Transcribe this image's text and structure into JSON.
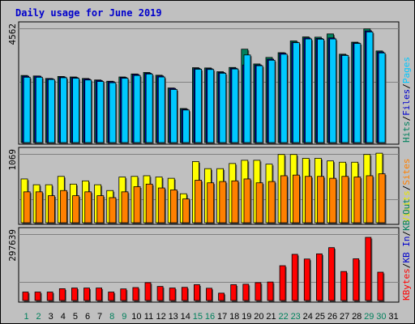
{
  "chart_data": {
    "type": "bar",
    "title": "Daily usage for June 2019",
    "days": [
      "1",
      "2",
      "3",
      "4",
      "5",
      "6",
      "7",
      "8",
      "9",
      "10",
      "11",
      "12",
      "13",
      "14",
      "15",
      "16",
      "17",
      "18",
      "19",
      "20",
      "21",
      "22",
      "23",
      "24",
      "25",
      "26",
      "27",
      "28",
      "29",
      "30",
      "31"
    ],
    "weekend_days": [
      1,
      2,
      8,
      9,
      15,
      16,
      22,
      23,
      29,
      30
    ],
    "colors": {
      "hits": "#00805c",
      "files": "#0000cc",
      "pages": "#00c8ff",
      "visits": "#ffff00",
      "sites": "#ff8000",
      "kbf": "#ff0000",
      "kbin": "#0000cc",
      "kbout": "#00805c",
      "day_weekday": "#000000",
      "day_weekend": "#00805c"
    },
    "panels": [
      {
        "id": "hits",
        "ymax_label": "4562",
        "ymax": 4562,
        "legend": [
          {
            "text": "Hits",
            "color": "#00805c"
          },
          {
            "text": "/",
            "color": "#000000"
          },
          {
            "text": "Files",
            "color": "#0000cc"
          },
          {
            "text": "/",
            "color": "#000000"
          },
          {
            "text": "Pages",
            "color": "#00c8ff"
          }
        ],
        "series": [
          {
            "name": "Hits",
            "color": "#00805c",
            "values": [
              2680,
              2660,
              2560,
              2640,
              2620,
              2560,
              2500,
              2450,
              2620,
              2740,
              2800,
              2690,
              2180,
              1360,
              2990,
              2980,
              2830,
              3000,
              3730,
              3140,
              3400,
              3590,
              4060,
              4220,
              4210,
              4340,
              3530,
              4010,
              4540,
              3660,
              0
            ]
          },
          {
            "name": "Files",
            "color": "#0000cc",
            "values": [
              2650,
              2650,
              2550,
              2620,
              2600,
              2540,
              2480,
              2430,
              2600,
              2720,
              2770,
              2660,
              2160,
              1330,
              2960,
              2950,
              2800,
              2970,
              3100,
              3100,
              3330,
              3570,
              4010,
              4180,
              4160,
              4180,
              3500,
              3980,
              4460,
              3620,
              0
            ]
          },
          {
            "name": "Pages",
            "color": "#00c8ff",
            "values": [
              2610,
              2610,
              2520,
              2590,
              2570,
              2500,
              2440,
              2390,
              2570,
              2680,
              2740,
              2620,
              2120,
              1300,
              2930,
              2920,
              2770,
              2940,
              3500,
              3070,
              3290,
              3530,
              3990,
              4140,
              4130,
              4140,
              3480,
              3960,
              4420,
              3580,
              0
            ]
          }
        ]
      },
      {
        "id": "visits",
        "ymax_label": "1069",
        "ymax": 1069,
        "legend": [
          {
            "text": "Visits",
            "color": "#e6e600"
          },
          {
            "text": "/",
            "color": "#000000"
          },
          {
            "text": "Sites",
            "color": "#ff8000"
          }
        ],
        "series": [
          {
            "name": "Visits",
            "color": "#ffff00",
            "values": [
              680,
              590,
              590,
              720,
              600,
              650,
              590,
              500,
              710,
              720,
              730,
              710,
              690,
              450,
              950,
              840,
              840,
              920,
              970,
              970,
              910,
              1060,
              1060,
              1000,
              1000,
              960,
              940,
              940,
              1060,
              1080,
              0
            ]
          },
          {
            "name": "Sites",
            "color": "#ff8000",
            "values": [
              480,
              480,
              420,
              500,
              420,
              480,
              420,
              390,
              480,
              560,
              600,
              540,
              510,
              370,
              660,
              620,
              640,
              650,
              680,
              620,
              640,
              730,
              740,
              720,
              720,
              690,
              720,
              710,
              730,
              760,
              0
            ]
          }
        ]
      },
      {
        "id": "kbytes",
        "ymax_label": "297639",
        "ymax": 297639,
        "legend": [
          {
            "text": "KBytes",
            "color": "#ff0000"
          },
          {
            "text": "/",
            "color": "#000000"
          },
          {
            "text": "KB In",
            "color": "#0000cc"
          },
          {
            "text": "/",
            "color": "#000000"
          },
          {
            "text": "KB Out",
            "color": "#00805c"
          }
        ],
        "series": [
          {
            "name": "KBytes",
            "color": "#ff0000",
            "values": [
              38000,
              38000,
              38000,
              53000,
              56000,
              56000,
              56000,
              38000,
              52000,
              58000,
              80000,
              63000,
              56000,
              59000,
              71000,
              55000,
              33000,
              71000,
              73000,
              80000,
              83000,
              156000,
              207000,
              186000,
              209000,
              237000,
              130000,
              187000,
              283000,
              127000,
              0
            ]
          }
        ]
      }
    ]
  }
}
